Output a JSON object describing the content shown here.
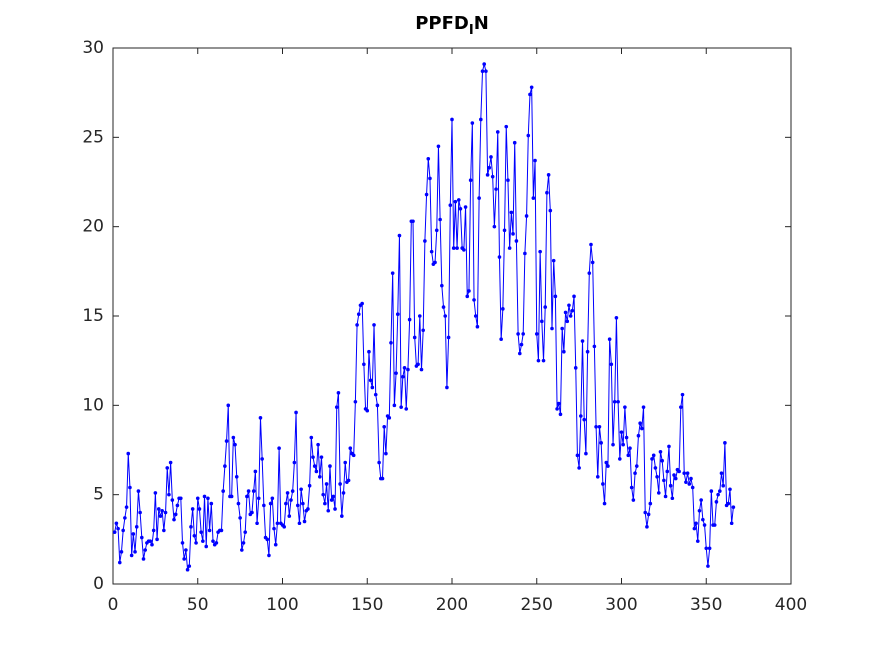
{
  "chart_data": {
    "type": "line",
    "title": [
      "PPFD",
      "I",
      "N"
    ],
    "color": "#0000ff",
    "marker": true,
    "xlim": [
      0,
      400
    ],
    "xticks": [
      0,
      50,
      100,
      150,
      200,
      250,
      300,
      350,
      400
    ],
    "ylim": [
      0,
      30
    ],
    "yticks": [
      0,
      5,
      10,
      15,
      20,
      25,
      30
    ],
    "grid": false,
    "x": [
      1,
      2,
      3,
      4,
      5,
      6,
      7,
      8,
      9,
      10,
      11,
      12,
      13,
      14,
      15,
      16,
      17,
      18,
      19,
      20,
      21,
      22,
      23,
      24,
      25,
      26,
      27,
      28,
      29,
      30,
      31,
      32,
      33,
      34,
      35,
      36,
      37,
      38,
      39,
      40,
      41,
      42,
      43,
      44,
      45,
      46,
      47,
      48,
      49,
      50,
      51,
      52,
      53,
      54,
      55,
      56,
      57,
      58,
      59,
      60,
      61,
      62,
      63,
      64,
      65,
      66,
      67,
      68,
      69,
      70,
      71,
      72,
      73,
      74,
      75,
      76,
      77,
      78,
      79,
      80,
      81,
      82,
      83,
      84,
      85,
      86,
      87,
      88,
      89,
      90,
      91,
      92,
      93,
      94,
      95,
      96,
      97,
      98,
      99,
      100,
      101,
      102,
      103,
      104,
      105,
      106,
      107,
      108,
      109,
      110,
      111,
      112,
      113,
      114,
      115,
      116,
      117,
      118,
      119,
      120,
      121,
      122,
      123,
      124,
      125,
      126,
      127,
      128,
      129,
      130,
      131,
      132,
      133,
      134,
      135,
      136,
      137,
      138,
      139,
      140,
      141,
      142,
      143,
      144,
      145,
      146,
      147,
      148,
      149,
      150,
      151,
      152,
      153,
      154,
      155,
      156,
      157,
      158,
      159,
      160,
      161,
      162,
      163,
      164,
      165,
      166,
      167,
      168,
      169,
      170,
      171,
      172,
      173,
      174,
      175,
      176,
      177,
      178,
      179,
      180,
      181,
      182,
      183,
      184,
      185,
      186,
      187,
      188,
      189,
      190,
      191,
      192,
      193,
      194,
      195,
      196,
      197,
      198,
      199,
      200,
      201,
      202,
      203,
      204,
      205,
      206,
      207,
      208,
      209,
      210,
      211,
      212,
      213,
      214,
      215,
      216,
      217,
      218,
      219,
      220,
      221,
      222,
      223,
      224,
      225,
      226,
      227,
      228,
      229,
      230,
      231,
      232,
      233,
      234,
      235,
      236,
      237,
      238,
      239,
      240,
      241,
      242,
      243,
      244,
      245,
      246,
      247,
      248,
      249,
      250,
      251,
      252,
      253,
      254,
      255,
      256,
      257,
      258,
      259,
      260,
      261,
      262,
      263,
      264,
      265,
      266,
      267,
      268,
      269,
      270,
      271,
      272,
      273,
      274,
      275,
      276,
      277,
      278,
      279,
      280,
      281,
      282,
      283,
      284,
      285,
      286,
      287,
      288,
      289,
      290,
      291,
      292,
      293,
      294,
      295,
      296,
      297,
      298,
      299,
      300,
      301,
      302,
      303,
      304,
      305,
      306,
      307,
      308,
      309,
      310,
      311,
      312,
      313,
      314,
      315,
      316,
      317,
      318,
      319,
      320,
      321,
      322,
      323,
      324,
      325,
      326,
      327,
      328,
      329,
      330,
      331,
      332,
      333,
      334,
      335,
      336,
      337,
      338,
      339,
      340,
      341,
      342,
      343,
      344,
      345,
      346,
      347,
      348,
      349,
      350,
      351,
      352,
      353,
      354,
      355,
      356,
      357,
      358,
      359,
      360,
      361,
      362,
      363,
      364,
      365,
      366
    ],
    "values": [
      2.9,
      3.4,
      3.1,
      1.2,
      1.8,
      3.0,
      3.7,
      4.3,
      7.3,
      5.4,
      1.6,
      2.8,
      1.8,
      3.2,
      5.2,
      4.0,
      2.6,
      1.4,
      1.9,
      2.3,
      2.4,
      2.4,
      2.2,
      3.0,
      5.1,
      2.5,
      4.2,
      3.8,
      4.1,
      3.0,
      4.0,
      6.5,
      5.0,
      6.8,
      4.7,
      3.6,
      3.9,
      4.4,
      4.8,
      4.8,
      2.3,
      1.4,
      1.9,
      0.8,
      1.0,
      3.2,
      4.2,
      2.7,
      2.3,
      4.8,
      4.2,
      2.9,
      2.4,
      4.9,
      2.1,
      4.8,
      3.0,
      4.5,
      2.4,
      2.2,
      2.3,
      2.9,
      3.0,
      3.0,
      5.2,
      6.6,
      8.0,
      10.0,
      4.9,
      4.9,
      8.2,
      7.8,
      6.0,
      4.5,
      3.7,
      1.9,
      2.3,
      2.9,
      4.9,
      5.2,
      3.9,
      4.0,
      5.2,
      6.3,
      3.4,
      4.8,
      9.3,
      7.0,
      4.4,
      2.6,
      2.5,
      1.6,
      4.5,
      4.8,
      3.1,
      2.2,
      3.4,
      7.6,
      3.4,
      3.3,
      3.2,
      4.5,
      5.1,
      3.8,
      4.7,
      5.2,
      6.8,
      9.6,
      4.4,
      3.4,
      5.3,
      4.5,
      3.5,
      4.1,
      4.2,
      5.5,
      8.2,
      7.1,
      6.6,
      6.3,
      7.8,
      6.0,
      7.1,
      5.0,
      4.5,
      5.6,
      4.1,
      6.6,
      4.7,
      4.9,
      4.2,
      9.9,
      10.7,
      5.6,
      3.8,
      5.1,
      6.8,
      5.7,
      5.8,
      7.6,
      7.3,
      7.2,
      10.2,
      14.5,
      15.1,
      15.6,
      15.7,
      12.3,
      9.8,
      9.7,
      13.0,
      11.4,
      11.0,
      14.5,
      10.6,
      10.0,
      6.8,
      5.9,
      5.9,
      8.8,
      7.3,
      9.4,
      9.3,
      13.5,
      17.4,
      10.0,
      11.8,
      15.1,
      19.5,
      9.9,
      11.6,
      12.1,
      9.8,
      12.0,
      14.8,
      20.3,
      20.3,
      13.8,
      12.2,
      12.3,
      15.0,
      12.0,
      14.2,
      19.2,
      21.8,
      23.8,
      22.7,
      18.6,
      17.9,
      18.0,
      19.8,
      24.5,
      20.4,
      16.7,
      15.5,
      15.0,
      11.0,
      13.8,
      21.2,
      26.0,
      18.8,
      21.4,
      18.8,
      21.5,
      21.0,
      18.8,
      18.7,
      21.1,
      16.1,
      16.4,
      22.6,
      25.8,
      15.9,
      15.0,
      14.4,
      21.6,
      26.0,
      28.7,
      29.1,
      28.7,
      22.9,
      23.3,
      23.9,
      22.8,
      20.0,
      22.1,
      25.3,
      18.3,
      13.7,
      15.4,
      19.8,
      25.6,
      22.6,
      18.8,
      20.8,
      19.6,
      24.7,
      19.2,
      14.0,
      12.9,
      13.4,
      14.0,
      18.5,
      20.6,
      25.1,
      27.4,
      27.8,
      21.6,
      23.7,
      14.0,
      12.5,
      18.6,
      14.7,
      12.5,
      15.5,
      21.9,
      22.9,
      20.9,
      14.3,
      18.1,
      16.1,
      9.8,
      10.1,
      9.5,
      14.3,
      13.0,
      15.2,
      14.7,
      15.6,
      15.0,
      15.3,
      16.1,
      12.1,
      7.2,
      6.5,
      9.4,
      13.6,
      9.2,
      7.3,
      13.0,
      17.4,
      19.0,
      18.0,
      13.3,
      8.8,
      6.0,
      8.8,
      7.9,
      5.6,
      4.5,
      6.8,
      6.6,
      13.7,
      12.3,
      7.8,
      10.2,
      14.9,
      10.2,
      7.0,
      8.5,
      7.8,
      9.9,
      8.2,
      7.2,
      7.6,
      5.4,
      4.7,
      6.2,
      6.6,
      8.3,
      9.0,
      8.7,
      9.9,
      4.0,
      3.2,
      3.9,
      4.5,
      7.0,
      7.2,
      6.5,
      6.0,
      5.1,
      7.4,
      6.9,
      5.8,
      4.9,
      6.3,
      7.7,
      5.5,
      4.8,
      6.1,
      5.9,
      6.4,
      6.3,
      9.9,
      10.6,
      6.2,
      5.7,
      6.2,
      5.6,
      5.9,
      5.4,
      3.1,
      3.4,
      2.4,
      4.1,
      4.7,
      3.6,
      3.3,
      2.0,
      1.0,
      2.0,
      5.2,
      3.3,
      3.3,
      4.6,
      5.0,
      5.2,
      6.2,
      5.5,
      7.9,
      4.4,
      4.5,
      5.3,
      3.4,
      4.3
    ]
  }
}
